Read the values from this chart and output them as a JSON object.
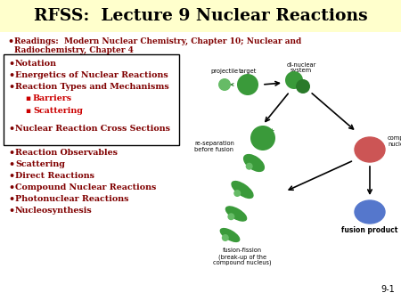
{
  "title": "RFSS:  Lecture 9 Nuclear Reactions",
  "title_fontsize": 13.5,
  "title_bg": "#FFFFCC",
  "bg_color": "#FFFFFF",
  "bullet_color": "#800000",
  "red_color": "#CC0000",
  "box_items": [
    "Notation",
    "Energetics of Nuclear Reactions",
    "Reaction Types and Mechanisms",
    "Nuclear Reaction Cross Sections"
  ],
  "sub_items": [
    "Barriers",
    "Scattering"
  ],
  "reading_line1": "Readings:  Modern Nuclear Chemistry, Chapter 10; Nuclear and",
  "reading_line2": "Radiochemistry, Chapter 4",
  "outer_bullets": [
    "Reaction Observables",
    "Scattering",
    "Direct Reactions",
    "Compound Nuclear Reactions",
    "Photonuclear Reactions",
    "Nucleosynthesis"
  ],
  "slide_number": "9-1",
  "green": "#3A9A3A",
  "dark_green": "#2A7A2A",
  "light_green": "#66BB66",
  "red_nucleus": "#CC5555",
  "blue_nucleus": "#5577CC"
}
